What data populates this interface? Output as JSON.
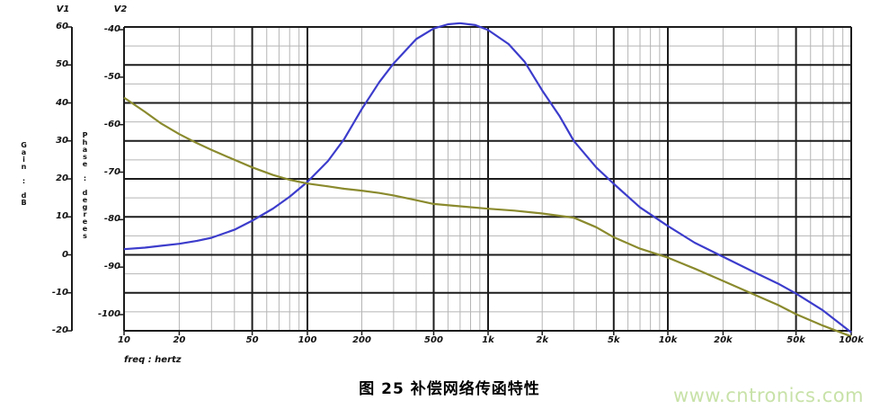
{
  "caption": "图 25 补偿网络传函特性",
  "watermark": "www.cntronics.com",
  "colors": {
    "gain_curve": "#3c3ccc",
    "phase_curve": "#8a8a2e",
    "grid_major": "#1c1c1c",
    "grid_minor": "#b5b5b5",
    "watermark": "#c8e2a8"
  },
  "chart_data": {
    "type": "line",
    "title": "图 25 补偿网络传函特性",
    "grid": "log-x major/minor, dual y-axis",
    "x_axis": {
      "label": "freq : hertz",
      "scale": "log",
      "min": 10,
      "max": 100000,
      "tick_values": [
        10,
        20,
        50,
        100,
        200,
        500,
        1000,
        2000,
        5000,
        10000,
        20000,
        50000,
        100000
      ],
      "tick_labels": [
        "10",
        "20",
        "50",
        "100",
        "200",
        "500",
        "1k",
        "2k",
        "5k",
        "10k",
        "20k",
        "50k",
        "100k"
      ],
      "major_grid_mantissas": [
        1,
        5
      ],
      "minor_grid_mantissas": [
        2,
        3,
        4,
        6,
        7,
        8,
        9
      ]
    },
    "y_axes": [
      {
        "id": "V1",
        "header": "V1",
        "label": "Gain : dB",
        "min": -20,
        "max": 60,
        "ticks": [
          60,
          50,
          40,
          30,
          20,
          10,
          0,
          -10,
          -20
        ],
        "tick_labels": [
          "60",
          "50",
          "40",
          "30",
          "20",
          "10",
          "0",
          "-10",
          "-20"
        ]
      },
      {
        "id": "V2",
        "header": "V2",
        "label": "Phase : degrees",
        "min": -100,
        "max": -40,
        "ticks": [
          -40,
          -50,
          -60,
          -70,
          -80,
          -90,
          -100
        ],
        "tick_labels": [
          "-40",
          "-50",
          "-60",
          "-70",
          "-80",
          "-90",
          "-100"
        ]
      }
    ],
    "series": [
      {
        "name": "gain",
        "axis": "V1",
        "color": "#3c3ccc",
        "points": [
          [
            10,
            1.5
          ],
          [
            13,
            1.9
          ],
          [
            16,
            2.4
          ],
          [
            20,
            2.9
          ],
          [
            25,
            3.7
          ],
          [
            30,
            4.5
          ],
          [
            40,
            6.6
          ],
          [
            50,
            9.0
          ],
          [
            65,
            12.2
          ],
          [
            80,
            15.3
          ],
          [
            100,
            19.2
          ],
          [
            130,
            24.7
          ],
          [
            160,
            30.5
          ],
          [
            200,
            38.4
          ],
          [
            250,
            45.5
          ],
          [
            300,
            50.4
          ],
          [
            400,
            56.8
          ],
          [
            500,
            59.6
          ],
          [
            600,
            60.7
          ],
          [
            700,
            61.0
          ],
          [
            850,
            60.5
          ],
          [
            1000,
            59.2
          ],
          [
            1300,
            55.5
          ],
          [
            1600,
            50.8
          ],
          [
            2000,
            43.3
          ],
          [
            2500,
            36.5
          ],
          [
            3000,
            30.0
          ],
          [
            4000,
            23.0
          ],
          [
            5000,
            18.7
          ],
          [
            7000,
            12.5
          ],
          [
            10000,
            7.6
          ],
          [
            14000,
            3.2
          ],
          [
            20000,
            -0.5
          ],
          [
            30000,
            -4.7
          ],
          [
            40000,
            -7.6
          ],
          [
            50000,
            -10.2
          ],
          [
            70000,
            -14.6
          ],
          [
            100000,
            -20.4
          ]
        ]
      },
      {
        "name": "phase",
        "axis": "V2",
        "color": "#8a8a2e",
        "points": [
          [
            10,
            -54.3
          ],
          [
            13,
            -57.3
          ],
          [
            16,
            -59.8
          ],
          [
            20,
            -62.0
          ],
          [
            25,
            -63.9
          ],
          [
            30,
            -65.3
          ],
          [
            40,
            -67.4
          ],
          [
            50,
            -69.0
          ],
          [
            65,
            -70.6
          ],
          [
            80,
            -71.6
          ],
          [
            100,
            -72.4
          ],
          [
            130,
            -73.0
          ],
          [
            160,
            -73.5
          ],
          [
            200,
            -73.9
          ],
          [
            250,
            -74.4
          ],
          [
            300,
            -74.9
          ],
          [
            400,
            -75.9
          ],
          [
            500,
            -76.7
          ],
          [
            700,
            -77.2
          ],
          [
            1000,
            -77.7
          ],
          [
            1400,
            -78.1
          ],
          [
            2000,
            -78.7
          ],
          [
            3000,
            -79.6
          ],
          [
            4000,
            -81.6
          ],
          [
            5000,
            -83.7
          ],
          [
            7000,
            -86.1
          ],
          [
            10000,
            -88.0
          ],
          [
            14000,
            -90.3
          ],
          [
            20000,
            -92.9
          ],
          [
            30000,
            -95.9
          ],
          [
            40000,
            -98.0
          ],
          [
            50000,
            -99.9
          ],
          [
            70000,
            -102.3
          ],
          [
            100000,
            -104.6
          ]
        ]
      }
    ]
  }
}
